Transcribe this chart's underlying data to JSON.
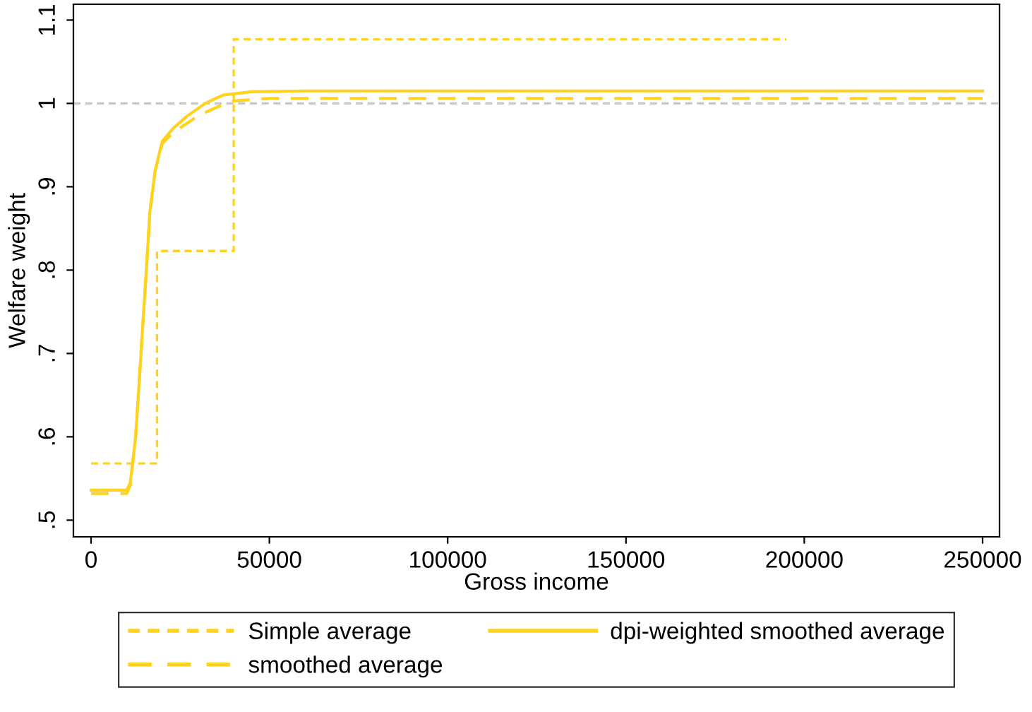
{
  "chart_data": {
    "type": "line",
    "xlabel": "Gross income",
    "ylabel": "Welfare weight",
    "xlim": [
      -4950,
      254750
    ],
    "ylim": [
      0.48,
      1.119
    ],
    "xticks": [
      0,
      50000,
      100000,
      150000,
      200000,
      250000
    ],
    "yticks": [
      {
        "value": 0.5,
        "label": ".5"
      },
      {
        "value": 0.6,
        "label": ".6"
      },
      {
        "value": 0.7,
        "label": ".7"
      },
      {
        "value": 0.8,
        "label": ".8"
      },
      {
        "value": 0.9,
        "label": ".9"
      },
      {
        "value": 1,
        "label": "1"
      },
      {
        "value": 1.1,
        "label": "1.1"
      }
    ],
    "grid": false,
    "legend": "bottom",
    "ref_lines": [
      {
        "axis": "y",
        "value": 1,
        "color": "#c8c8c8",
        "line_style": "dotted"
      }
    ],
    "series": [
      {
        "name": "Simple average",
        "type": "step",
        "line_style": "dotted",
        "color": "#ffd21f",
        "x": [
          0,
          18500,
          40000,
          195000
        ],
        "values": [
          0.568,
          0.823,
          1.077,
          1.077
        ]
      },
      {
        "name": "dpi-weighted smoothed average",
        "line_style": "solid",
        "color": "#ffd21f",
        "x": [
          0,
          10000,
          11000,
          12500,
          14000,
          15500,
          16500,
          18000,
          20000,
          23000,
          27000,
          32000,
          37000,
          45000,
          60000,
          250000
        ],
        "values": [
          0.536,
          0.536,
          0.545,
          0.6,
          0.7,
          0.8,
          0.87,
          0.92,
          0.955,
          0.97,
          0.985,
          1.0,
          1.01,
          1.014,
          1.015,
          1.015
        ]
      },
      {
        "name": "smoothed average",
        "line_style": "dashed",
        "color": "#ffd21f",
        "x": [
          0,
          10000,
          11000,
          12500,
          14000,
          15500,
          16500,
          18000,
          20000,
          23000,
          30000,
          35000,
          40000,
          50000,
          250000
        ],
        "values": [
          0.532,
          0.532,
          0.542,
          0.6,
          0.7,
          0.8,
          0.87,
          0.92,
          0.952,
          0.965,
          0.985,
          0.995,
          1.003,
          1.006,
          1.006
        ]
      }
    ]
  }
}
